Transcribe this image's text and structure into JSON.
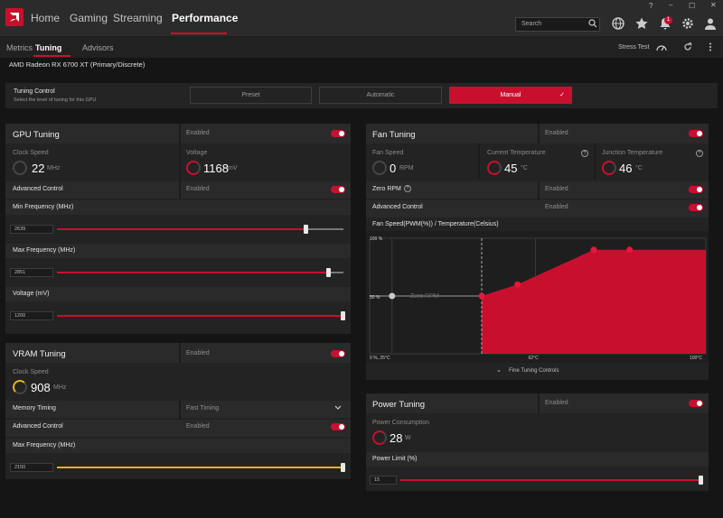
{
  "topbar": {
    "tabs": [
      "Home",
      "Gaming",
      "Streaming",
      "Performance"
    ],
    "search_placeholder": "Search",
    "notification_count": "1"
  },
  "subnav": {
    "tabs": [
      "Metrics",
      "Tuning",
      "Advisors"
    ],
    "stress_test": "Stress Test"
  },
  "gpu_name": "AMD Radeon RX 6700 XT (Primary/Discrete)",
  "tuning_control": {
    "label": "Tuning Control",
    "sublabel": "Select the level of tuning for this GPU",
    "options": [
      "Preset",
      "Automatic",
      "Manual"
    ],
    "selected": "Manual"
  },
  "gpu_tuning": {
    "title": "GPU Tuning",
    "status": "Enabled",
    "clock_label": "Clock Speed",
    "clock_value": "22",
    "clock_unit": "MHz",
    "voltage_label": "Voltage",
    "voltage_value": "1168",
    "voltage_unit": "mV",
    "advanced_label": "Advanced Control",
    "advanced_status": "Enabled",
    "min_freq_label": "Min Frequency (MHz)",
    "min_freq_value": "2639",
    "min_freq_fraction": 0.87,
    "max_freq_label": "Max Frequency (MHz)",
    "max_freq_value": "2851",
    "max_freq_fraction": 0.95,
    "voltage_slider_label": "Voltage (mV)",
    "voltage_slider_value": "1200",
    "voltage_slider_fraction": 1.0
  },
  "vram_tuning": {
    "title": "VRAM Tuning",
    "status": "Enabled",
    "clock_label": "Clock Speed",
    "clock_value": "908",
    "clock_unit": "MHz",
    "timing_label": "Memory Timing",
    "timing_value": "Fast Timing",
    "advanced_label": "Advanced Control",
    "advanced_status": "Enabled",
    "max_freq_label": "Max Frequency (MHz)",
    "max_freq_value": "2150",
    "max_freq_fraction": 1.0
  },
  "fan_tuning": {
    "title": "Fan Tuning",
    "status": "Enabled",
    "fan_speed_label": "Fan Speed",
    "fan_speed_value": "0",
    "fan_speed_unit": "RPM",
    "cur_temp_label": "Current Temperature",
    "cur_temp_value": "45",
    "cur_temp_unit": "°C",
    "junction_label": "Junction Temperature",
    "junction_value": "46",
    "junction_unit": "°C",
    "zero_rpm_label": "Zero RPM",
    "zero_rpm_status": "Enabled",
    "advanced_label": "Advanced Control",
    "advanced_status": "Enabled",
    "curve_label": "Fan Speed(PWM(%)) / Temperature(Celsius)",
    "fine_tuning": "Fine Tuning Controls"
  },
  "chart_data": {
    "type": "area",
    "title": "Fan Speed(PWM(%)) / Temperature(Celsius)",
    "tick_labels": {
      "y_top": "100 %",
      "y_mid": "50 %",
      "origin": "0 %, 25°C",
      "x_mid": "62°C",
      "x_max": "100°C"
    },
    "zero_rpm_label": "Zero RPM",
    "xlim": [
      25,
      100
    ],
    "ylim": [
      0,
      100
    ],
    "zero_rpm_point": {
      "x": 30,
      "y": 50
    },
    "zero_rpm_threshold": 50,
    "points": [
      {
        "x": 50,
        "y": 50
      },
      {
        "x": 58,
        "y": 60
      },
      {
        "x": 75,
        "y": 90
      },
      {
        "x": 83,
        "y": 90
      },
      {
        "x": 100,
        "y": 90
      }
    ],
    "fill_color": "#c8102e"
  },
  "power_tuning": {
    "title": "Power Tuning",
    "status": "Enabled",
    "consumption_label": "Power Consumption",
    "consumption_value": "28",
    "consumption_unit": "W",
    "limit_label": "Power Limit (%)",
    "limit_value": "15",
    "limit_fraction": 1.0
  },
  "colors": {
    "accent": "#c8102e",
    "vram_accent": "#e7b320"
  }
}
